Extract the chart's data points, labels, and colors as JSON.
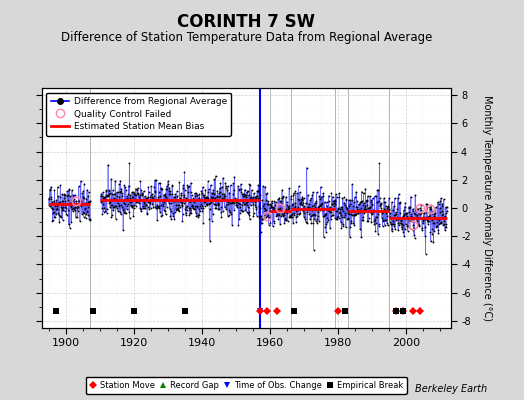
{
  "title": "CORINTH 7 SW",
  "subtitle": "Difference of Station Temperature Data from Regional Average",
  "ylabel": "Monthly Temperature Anomaly Difference (°C)",
  "xlim": [
    1893,
    2013
  ],
  "ylim": [
    -8.5,
    8.5
  ],
  "yticks": [
    -8,
    -6,
    -4,
    -2,
    0,
    2,
    4,
    6,
    8
  ],
  "xticks": [
    1900,
    1920,
    1940,
    1960,
    1980,
    2000
  ],
  "bg_color": "#d8d8d8",
  "plot_bg_color": "#ffffff",
  "title_fontsize": 12,
  "subtitle_fontsize": 8.5,
  "seed": 42,
  "segment_biases": [
    {
      "start": 1895,
      "end": 1907,
      "bias": 0.3
    },
    {
      "start": 1910,
      "end": 1957,
      "bias": 0.55
    },
    {
      "start": 1957,
      "end": 1960,
      "bias": -0.15
    },
    {
      "start": 1960,
      "end": 1966,
      "bias": -0.2
    },
    {
      "start": 1966,
      "end": 1979,
      "bias": -0.1
    },
    {
      "start": 1979,
      "end": 1983,
      "bias": -0.35
    },
    {
      "start": 1983,
      "end": 1995,
      "bias": -0.2
    },
    {
      "start": 1995,
      "end": 2012,
      "bias": -0.7
    }
  ],
  "bias_segments": [
    {
      "start": 1895,
      "end": 1907,
      "value": 0.3
    },
    {
      "start": 1910,
      "end": 1957,
      "value": 0.55
    },
    {
      "start": 1960,
      "end": 1966,
      "value": -0.2
    },
    {
      "start": 1966,
      "end": 1979,
      "value": -0.1
    },
    {
      "start": 1983,
      "end": 1995,
      "value": -0.2
    },
    {
      "start": 1995,
      "end": 2012,
      "value": -0.7
    }
  ],
  "station_moves": [
    1957,
    1959,
    1962,
    1980,
    1997,
    1999,
    2002,
    2004
  ],
  "empirical_breaks": [
    1897,
    1908,
    1920,
    1935,
    1967,
    1982,
    1997,
    1999
  ],
  "obs_change_years": [
    1957
  ],
  "qc_failed_years": [
    1903,
    1959,
    1963,
    2002,
    2004,
    2007
  ],
  "vertical_break_lines": [
    1907,
    1957,
    1960,
    1966,
    1979,
    1983,
    1995
  ],
  "watermark": "Berkeley Earth",
  "noise_std": 0.65,
  "noise_large_count": 25,
  "noise_large_scale": 1.8,
  "marker_y": -7.3
}
